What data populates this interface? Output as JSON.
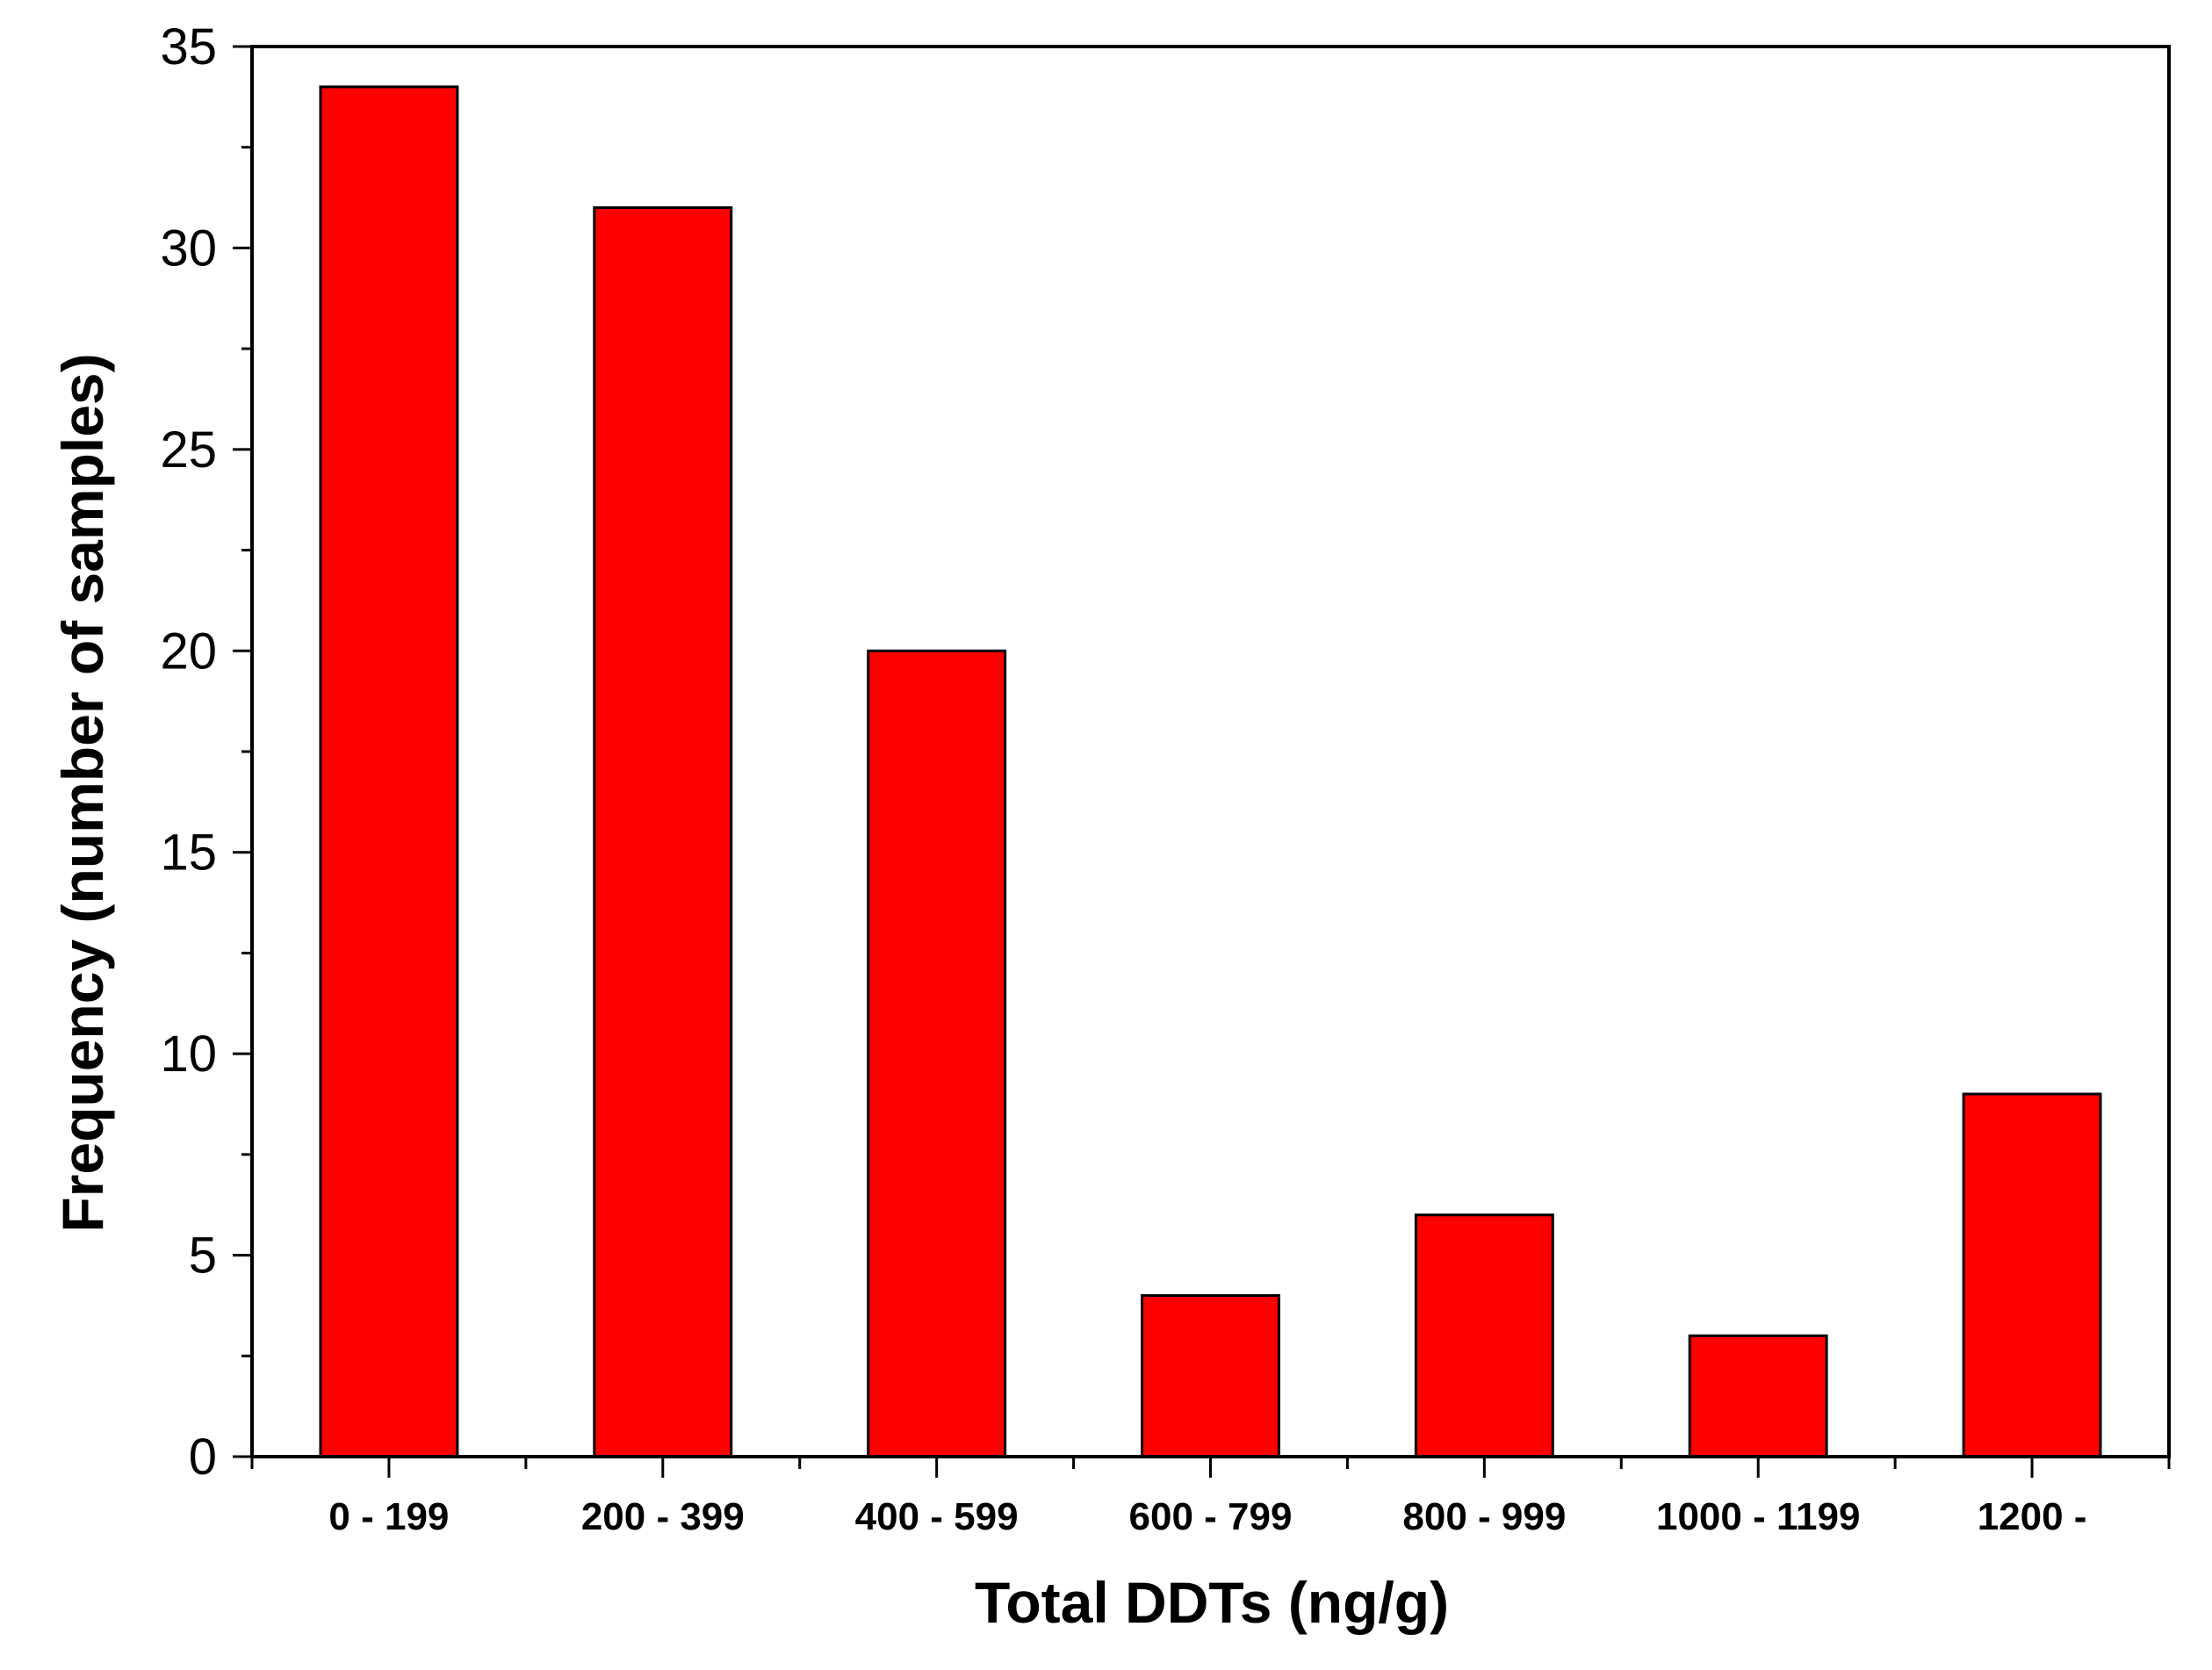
{
  "colors": {
    "bar_fill": "#ff0000",
    "bar_stroke": "#000000",
    "axis": "#000000",
    "background": "#ffffff"
  },
  "chart_data": {
    "type": "bar",
    "title": "",
    "xlabel": "Total DDTs (ng/g)",
    "ylabel": "Frequency (number of samples)",
    "categories": [
      "0 - 199",
      "200 - 399",
      "400 - 599",
      "600 - 799",
      "800 - 999",
      "1000 - 1199",
      "1200 -"
    ],
    "values": [
      34,
      31,
      20,
      4,
      6,
      3,
      9
    ],
    "ylim": [
      0,
      35
    ],
    "yticks": [
      0,
      5,
      10,
      15,
      20,
      25,
      30,
      35
    ],
    "yticks_minor_step": 2.5,
    "grid": false,
    "legend": "none"
  }
}
